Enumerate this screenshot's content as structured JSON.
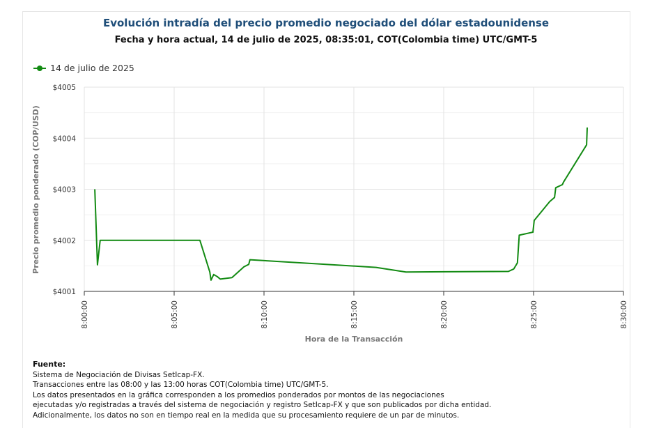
{
  "chart_data": {
    "type": "line",
    "title": "Evolución intradía del precio promedio negociado del dólar estadounidense",
    "subtitle": "Fecha y hora actual, 14 de julio de 2025, 08:35:01, COT(Colombia time) UTC/GMT-5",
    "xlabel": "Hora de la Transacción",
    "ylabel": "Precio promedio ponderado (COP/USD)",
    "xlim": [
      "8:00:00",
      "8:30:00"
    ],
    "ylim": [
      4001,
      4005
    ],
    "x_ticks": [
      "8:00:00",
      "8:05:00",
      "8:10:00",
      "8:15:00",
      "8:20:00",
      "8:25:00",
      "8:30:00"
    ],
    "y_ticks": [
      "$4001",
      "$4002",
      "$4003",
      "$4004",
      "$4005"
    ],
    "grid": true,
    "legend_position": "top-left",
    "color": "#128a12",
    "series": [
      {
        "name": "14 de julio de 2025",
        "points": [
          [
            "8:00:35",
            4003.0
          ],
          [
            "8:00:44",
            4001.52
          ],
          [
            "8:00:53",
            4002.0
          ],
          [
            "8:06:26",
            4002.0
          ],
          [
            "8:06:59",
            4001.38
          ],
          [
            "8:07:03",
            4001.22
          ],
          [
            "8:07:12",
            4001.33
          ],
          [
            "8:07:24",
            4001.29
          ],
          [
            "8:07:34",
            4001.24
          ],
          [
            "8:08:13",
            4001.27
          ],
          [
            "8:08:53",
            4001.48
          ],
          [
            "8:09:09",
            4001.53
          ],
          [
            "8:09:13",
            4001.62
          ],
          [
            "8:16:14",
            4001.47
          ],
          [
            "8:17:54",
            4001.38
          ],
          [
            "8:23:36",
            4001.39
          ],
          [
            "8:23:54",
            4001.44
          ],
          [
            "8:24:06",
            4001.56
          ],
          [
            "8:24:12",
            4002.1
          ],
          [
            "8:24:58",
            4002.16
          ],
          [
            "8:25:02",
            4002.39
          ],
          [
            "8:25:54",
            4002.76
          ],
          [
            "8:26:10",
            4002.84
          ],
          [
            "8:26:14",
            4003.03
          ],
          [
            "8:26:36",
            4003.09
          ],
          [
            "8:26:40",
            4003.14
          ],
          [
            "8:27:57",
            4003.87
          ],
          [
            "8:27:59",
            4004.21
          ]
        ]
      }
    ]
  },
  "source": {
    "heading": "Fuente:",
    "lines": [
      "Sistema de Negociación de Divisas SetIcap-FX.",
      "Transacciones entre las 08:00 y las 13:00 horas COT(Colombia time) UTC/GMT-5.",
      "Los datos presentados en la gráfica corresponden a los promedios ponderados por montos de las negociaciones",
      "ejecutadas y/o registradas a través del sistema de negociación y registro SetIcap-FX y que son publicados por dicha entidad.",
      "Adicionalmente, los datos no son en tiempo real en la medida que su procesamiento requiere de un par de minutos."
    ]
  }
}
